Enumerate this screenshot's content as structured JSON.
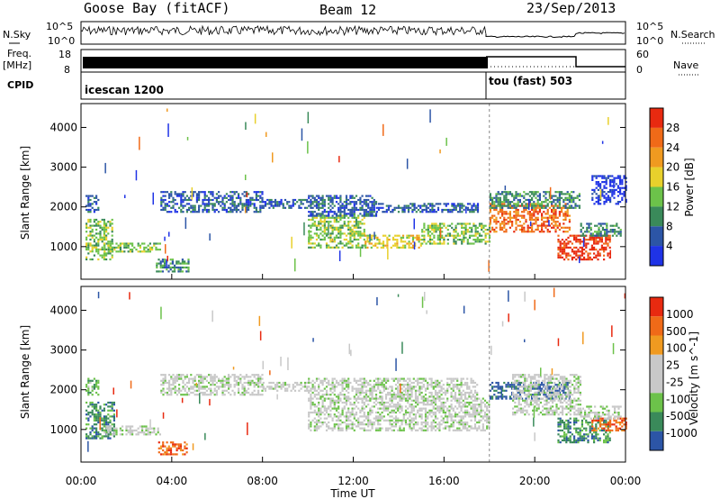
{
  "header": {
    "station": "Goose Bay (fitACF)",
    "beam": "Beam 12",
    "date": "23/Sep/2013"
  },
  "noise_panel": {
    "left_label": "N.Sky",
    "right_label": "N.Search",
    "left_ticks": [
      "10^5",
      "10^0"
    ],
    "right_ticks": [
      "10^5",
      "10^0"
    ]
  },
  "freq_panel": {
    "left_label_1": "Freq.",
    "left_label_2": "[MHz]",
    "right_label": "Nave",
    "left_ticks": [
      "18",
      "8"
    ],
    "right_ticks": [
      "60",
      "0"
    ]
  },
  "cpid_panel": {
    "label": "CPID",
    "segments": [
      {
        "name": "icescan 1200",
        "start_hour": 0
      },
      {
        "name": "tou (fast) 503",
        "start_hour": 18
      }
    ]
  },
  "colors": {
    "power_scale": [
      "#1f33e6",
      "#2c55a6",
      "#3a8a5a",
      "#6cc24a",
      "#e8d02c",
      "#f09a20",
      "#f06a18",
      "#e82a10"
    ],
    "velocity_scale": [
      "#2c55a6",
      "#3a8a5a",
      "#6cc24a",
      "#c8c8c8",
      "#c8c8c8",
      "#f09a20",
      "#f06a18",
      "#e82a10"
    ]
  },
  "chart_data": [
    {
      "type": "heatmap",
      "name": "power",
      "xlabel": "",
      "ylabel": "Slant Range [km]",
      "xlim": [
        0,
        24
      ],
      "ylim": [
        180,
        4600
      ],
      "y_ticks": [
        "4000",
        "3000",
        "2000",
        "1000"
      ],
      "y_tick_values": [
        4000,
        3000,
        2000,
        1000
      ],
      "colorbar_label": "Power [dB]",
      "colorbar_ticks": [
        "28",
        "24",
        "20",
        "16",
        "12",
        "8",
        "4"
      ],
      "colorbar_values": [
        28,
        24,
        20,
        16,
        12,
        8,
        4
      ],
      "colorbar_range": [
        0,
        32
      ],
      "echo_regions": [
        {
          "t0": 0.2,
          "t1": 1.4,
          "r0": 700,
          "r1": 1700,
          "level": 3
        },
        {
          "t0": 0.2,
          "t1": 0.8,
          "r0": 1900,
          "r1": 2300,
          "level": 1
        },
        {
          "t0": 1.0,
          "t1": 3.5,
          "r0": 900,
          "r1": 1100,
          "level": 3
        },
        {
          "t0": 3.3,
          "t1": 4.7,
          "r0": 400,
          "r1": 700,
          "level": 2
        },
        {
          "t0": 3.5,
          "t1": 8.0,
          "r0": 1900,
          "r1": 2400,
          "level": 1
        },
        {
          "t0": 8.0,
          "t1": 10.0,
          "r0": 2000,
          "r1": 2200,
          "level": 1
        },
        {
          "t0": 10.0,
          "t1": 12.5,
          "r0": 1000,
          "r1": 1800,
          "level": 3
        },
        {
          "t0": 10.0,
          "t1": 13.0,
          "r0": 1800,
          "r1": 2300,
          "level": 1
        },
        {
          "t0": 12.5,
          "t1": 15.0,
          "r0": 1000,
          "r1": 1300,
          "level": 4
        },
        {
          "t0": 15.0,
          "t1": 18.0,
          "r0": 1100,
          "r1": 1600,
          "level": 3
        },
        {
          "t0": 13.0,
          "t1": 17.5,
          "r0": 1900,
          "r1": 2100,
          "level": 1
        },
        {
          "t0": 18.0,
          "t1": 21.5,
          "r0": 1400,
          "r1": 2100,
          "level": 6
        },
        {
          "t0": 18.0,
          "t1": 22.0,
          "r0": 2000,
          "r1": 2400,
          "level": 2
        },
        {
          "t0": 21.0,
          "t1": 23.3,
          "r0": 700,
          "r1": 1300,
          "level": 7
        },
        {
          "t0": 22.0,
          "t1": 23.8,
          "r0": 1300,
          "r1": 1600,
          "level": 2
        },
        {
          "t0": 22.5,
          "t1": 24.0,
          "r0": 2100,
          "r1": 2800,
          "level": 0
        }
      ]
    },
    {
      "type": "heatmap",
      "name": "velocity",
      "xlabel": "Time UT",
      "ylabel": "Slant Range [km]",
      "xlim": [
        0,
        24
      ],
      "ylim": [
        180,
        4600
      ],
      "y_ticks": [
        "4000",
        "3000",
        "2000",
        "1000"
      ],
      "y_tick_values": [
        4000,
        3000,
        2000,
        1000
      ],
      "x_ticks": [
        "00:00",
        "04:00",
        "08:00",
        "12:00",
        "16:00",
        "20:00",
        "00:00"
      ],
      "x_tick_values": [
        0,
        4,
        8,
        12,
        16,
        20,
        24
      ],
      "colorbar_label": "Velocity [m s^-1]",
      "colorbar_ticks": [
        "1000",
        "500",
        "100",
        "25",
        "-25",
        "-100",
        "-500",
        "-1000"
      ],
      "echo_regions": [
        {
          "t0": 0.2,
          "t1": 1.5,
          "r0": 800,
          "r1": 1700,
          "level": 1
        },
        {
          "t0": 0.2,
          "t1": 0.8,
          "r0": 1900,
          "r1": 2300,
          "level": 2
        },
        {
          "t0": 1.0,
          "t1": 3.5,
          "r0": 900,
          "r1": 1100,
          "level": 3
        },
        {
          "t0": 3.4,
          "t1": 4.7,
          "r0": 400,
          "r1": 700,
          "level": 6
        },
        {
          "t0": 3.5,
          "t1": 8.0,
          "r0": 1900,
          "r1": 2400,
          "level": 3
        },
        {
          "t0": 8.0,
          "t1": 10.0,
          "r0": 2000,
          "r1": 2200,
          "level": 3
        },
        {
          "t0": 10.0,
          "t1": 18.0,
          "r0": 1000,
          "r1": 1800,
          "level": 3
        },
        {
          "t0": 10.0,
          "t1": 17.5,
          "r0": 1800,
          "r1": 2300,
          "level": 3
        },
        {
          "t0": 18.0,
          "t1": 21.5,
          "r0": 1800,
          "r1": 2200,
          "level": 0
        },
        {
          "t0": 19.0,
          "t1": 22.0,
          "r0": 1400,
          "r1": 2400,
          "level": 3
        },
        {
          "t0": 21.0,
          "t1": 23.3,
          "r0": 700,
          "r1": 1300,
          "level": 1
        },
        {
          "t0": 22.5,
          "t1": 24.0,
          "r0": 1000,
          "r1": 1300,
          "level": 6
        },
        {
          "t0": 22.0,
          "t1": 23.8,
          "r0": 1300,
          "r1": 1600,
          "level": 3
        }
      ]
    }
  ]
}
